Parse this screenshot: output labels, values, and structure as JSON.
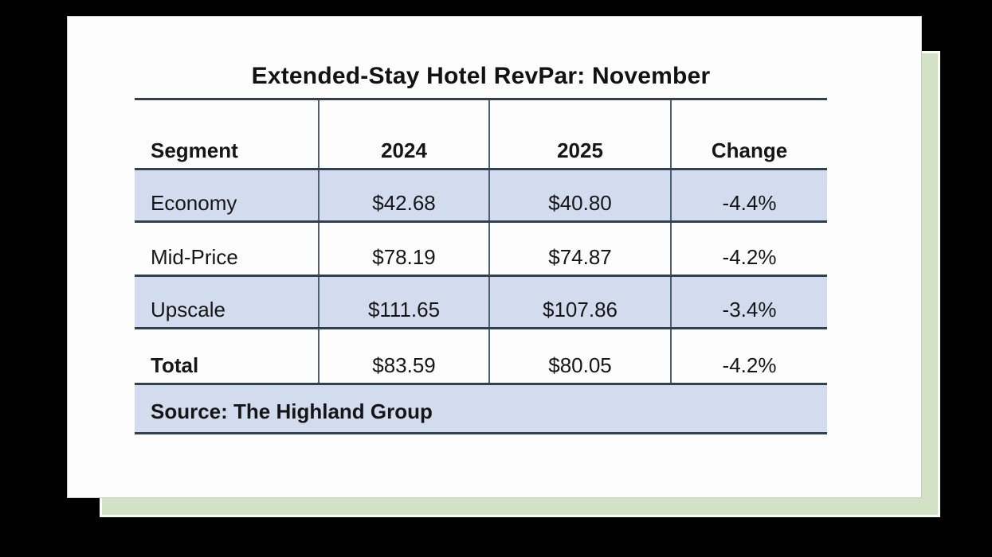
{
  "chart_data": {
    "type": "table",
    "title": "Extended-Stay Hotel RevPar: November",
    "columns": [
      "Segment",
      "2024",
      "2025",
      "Change"
    ],
    "rows": [
      {
        "segment": "Economy",
        "v2024": "$42.68",
        "v2025": "$40.80",
        "change": "-4.4%"
      },
      {
        "segment": "Mid-Price",
        "v2024": "$78.19",
        "v2025": "$74.87",
        "change": "-4.2%"
      },
      {
        "segment": "Upscale",
        "v2024": "$111.65",
        "v2025": "$107.86",
        "change": "-3.4%"
      },
      {
        "segment": "Total",
        "v2024": "$83.59",
        "v2025": "$80.05",
        "change": "-4.2%"
      }
    ],
    "source": "Source: The Highland Group",
    "layout": {
      "shaded_rows": [
        "Economy",
        "Upscale",
        "Source"
      ],
      "legend_position": "none",
      "grid": "horizontal-rules-with-column-dividers"
    }
  },
  "colors": {
    "background": "#000000",
    "card": "#fdfdfd",
    "row_shade_blue": "#d3dcee",
    "shadow_green": "#d3e1c4",
    "rule_dark": "#32414f",
    "divider": "#4e5f72",
    "text": "#161616"
  }
}
